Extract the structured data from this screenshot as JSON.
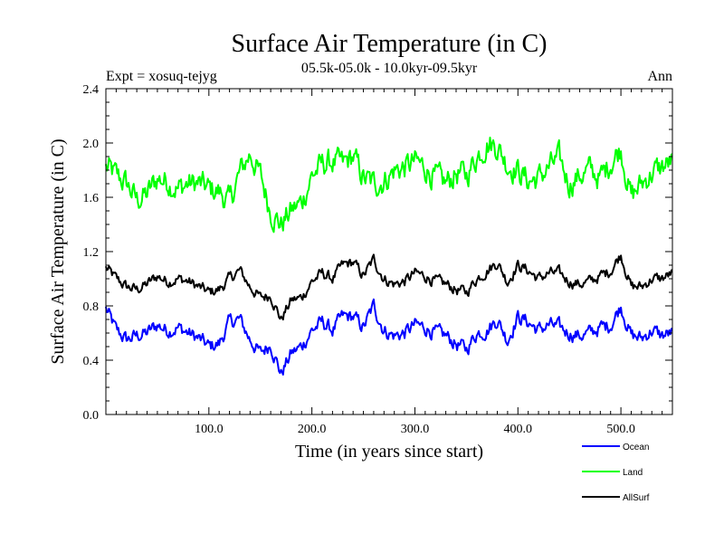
{
  "chart_data": {
    "type": "line",
    "title": "Surface Air Temperature (in C)",
    "subtitle": "05.5k-05.0k - 10.0kyr-09.5kyr",
    "expt_label": "Expt = xosuq-tejyg",
    "period_label": "Ann",
    "xlabel": "Time (in years since start)",
    "ylabel": "Surface Air Temperature (in C)",
    "xlim": [
      0,
      550
    ],
    "ylim": [
      0.0,
      2.4
    ],
    "x_ticks": [
      100,
      200,
      300,
      400,
      500
    ],
    "x_tick_labels": [
      "100.0",
      "200.0",
      "300.0",
      "400.0",
      "500.0"
    ],
    "y_ticks": [
      0.0,
      0.4,
      0.8,
      1.2,
      1.6,
      2.0,
      2.4
    ],
    "y_tick_labels": [
      "0.0",
      "0.4",
      "0.8",
      "1.2",
      "1.6",
      "2.0",
      "2.4"
    ],
    "grid": false,
    "legend_position": "bottom-right",
    "x_step": 10,
    "series": [
      {
        "name": "Ocean",
        "color": "#0000ff",
        "values": [
          0.78,
          0.62,
          0.55,
          0.58,
          0.6,
          0.66,
          0.62,
          0.64,
          0.6,
          0.56,
          0.5,
          0.52,
          0.68,
          0.7,
          0.55,
          0.45,
          0.52,
          0.3,
          0.45,
          0.5,
          0.62,
          0.68,
          0.62,
          0.72,
          0.72,
          0.64,
          0.8,
          0.62,
          0.58,
          0.6,
          0.66,
          0.64,
          0.6,
          0.58,
          0.52,
          0.48,
          0.6,
          0.62,
          0.7,
          0.55,
          0.72,
          0.68,
          0.62,
          0.66,
          0.64,
          0.6,
          0.58,
          0.6,
          0.64,
          0.66,
          0.8,
          0.58,
          0.56,
          0.62,
          0.58,
          0.6
        ]
      },
      {
        "name": "Land",
        "color": "#00ff00",
        "values": [
          1.82,
          1.76,
          1.7,
          1.58,
          1.62,
          1.74,
          1.72,
          1.66,
          1.7,
          1.7,
          1.66,
          1.64,
          1.56,
          1.78,
          1.92,
          1.76,
          1.5,
          1.4,
          1.5,
          1.56,
          1.76,
          1.84,
          1.86,
          1.84,
          1.9,
          1.74,
          1.7,
          1.72,
          1.8,
          1.82,
          1.86,
          1.82,
          1.74,
          1.7,
          1.78,
          1.76,
          1.9,
          2.0,
          1.98,
          1.84,
          1.8,
          1.72,
          1.74,
          1.82,
          1.88,
          1.7,
          1.76,
          1.8,
          1.74,
          1.86,
          1.96,
          1.6,
          1.7,
          1.78,
          1.82,
          1.86
        ]
      },
      {
        "name": "AllSurf",
        "color": "#000000",
        "values": [
          1.08,
          1.0,
          0.94,
          0.92,
          0.96,
          1.02,
          0.98,
          1.0,
          0.98,
          0.94,
          0.9,
          0.92,
          1.0,
          1.06,
          0.94,
          0.86,
          0.88,
          0.7,
          0.84,
          0.86,
          0.98,
          1.04,
          1.0,
          1.1,
          1.12,
          1.02,
          1.14,
          1.0,
          0.96,
          0.98,
          1.04,
          1.02,
          0.98,
          0.96,
          0.92,
          0.9,
          1.0,
          1.06,
          1.12,
          0.98,
          1.1,
          1.06,
          1.0,
          1.04,
          1.04,
          0.98,
          0.96,
          0.98,
          1.02,
          1.06,
          1.18,
          0.94,
          0.94,
          1.0,
          1.0,
          1.04
        ]
      }
    ]
  }
}
